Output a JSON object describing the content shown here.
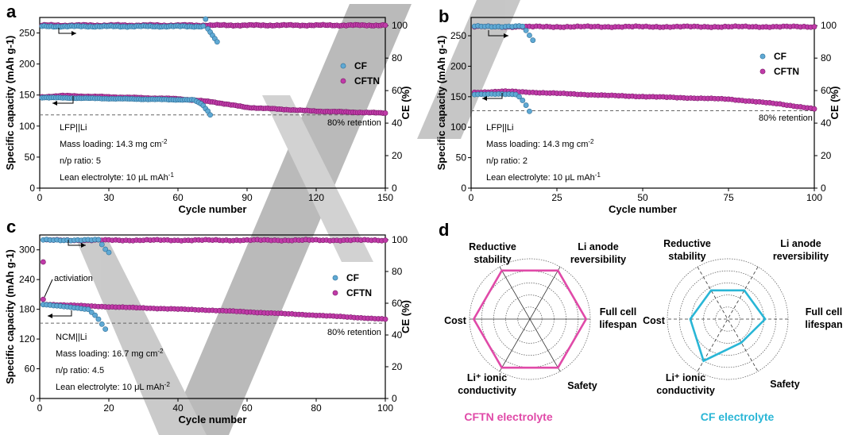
{
  "colors": {
    "cf_fill": "#5fa9d4",
    "cf_stroke": "#2f6f97",
    "cftn_fill": "#c03aa8",
    "cftn_stroke": "#7b1f6b",
    "radar_cftn": "#e04aa8",
    "radar_cf": "#29b6d6",
    "watermark": "#9a9a9a"
  },
  "chart_data": [
    {
      "panel": "a",
      "type": "scatter",
      "xlabel": "Cycle number",
      "ylabel": "Specific capacity (mAh g-1)",
      "y2label": "CE (%)",
      "xlim": [
        0,
        150
      ],
      "ylim": [
        0,
        275
      ],
      "y2lim": [
        0,
        105
      ],
      "xticks": [
        "0",
        "30",
        "60",
        "90",
        "120",
        "150"
      ],
      "yticks": [
        "0",
        "50",
        "100",
        "150",
        "200",
        "250"
      ],
      "y2ticks": [
        "0",
        "20",
        "40",
        "60",
        "80",
        "100"
      ],
      "legend": [
        "CF",
        "CFTN"
      ],
      "retention_label": "80% retention",
      "retention_value": 118,
      "notes": [
        "LFP||Li",
        "Mass loading: 14.3 mg cm",
        "n/p ratio: 5",
        "Lean electrolyte: 10 μL mAh"
      ],
      "note_sups": [
        "",
        "-2",
        "",
        "-1"
      ],
      "cf_cap": {
        "n": 67,
        "start": 146,
        "end": 142,
        "tail": [
          140,
          138,
          136,
          133,
          128,
          124,
          118
        ]
      },
      "cf_ce": {
        "n": 71,
        "base": 99.5,
        "tail": [
          104,
          98,
          96,
          94,
          92,
          90
        ]
      },
      "cftn_cap": {
        "n": 150,
        "points": [
          [
            1,
            147
          ],
          [
            10,
            149
          ],
          [
            30,
            147
          ],
          [
            60,
            144
          ],
          [
            75,
            139
          ],
          [
            90,
            130
          ],
          [
            120,
            124
          ],
          [
            150,
            121
          ]
        ]
      },
      "cftn_ce": {
        "n": 150,
        "base": 100.2
      }
    },
    {
      "panel": "b",
      "type": "scatter",
      "xlabel": "Cycle number",
      "ylabel": "Specific capacity (mAh g-1)",
      "y2label": "CE (%)",
      "xlim": [
        0,
        100
      ],
      "ylim": [
        0,
        280
      ],
      "y2lim": [
        0,
        105
      ],
      "xticks": [
        "0",
        "25",
        "50",
        "75",
        "100"
      ],
      "yticks": [
        "0",
        "50",
        "100",
        "150",
        "200",
        "250"
      ],
      "y2ticks": [
        "0",
        "20",
        "40",
        "60",
        "80",
        "100"
      ],
      "legend": [
        "CF",
        "CFTN"
      ],
      "retention_label": "80% retention",
      "retention_value": 127,
      "notes": [
        "LFP||Li",
        "Mass loading: 14.3 mg cm",
        "n/p ratio: 2",
        "Lean electrolyte: 10 μL mAh"
      ],
      "note_sups": [
        "",
        "-2",
        "",
        "-1"
      ],
      "cf_cap": {
        "n": 13,
        "start": 154,
        "end": 154,
        "tail": [
          150,
          144,
          136,
          126
        ]
      },
      "cf_ce": {
        "n": 15,
        "base": 99.5,
        "tail": [
          97,
          94,
          91
        ]
      },
      "cftn_cap": {
        "n": 100,
        "points": [
          [
            1,
            157
          ],
          [
            10,
            159
          ],
          [
            40,
            152
          ],
          [
            75,
            146
          ],
          [
            90,
            138
          ],
          [
            100,
            130
          ]
        ]
      },
      "cftn_ce": {
        "n": 100,
        "base": 99.3
      }
    },
    {
      "panel": "c",
      "type": "scatter",
      "xlabel": "Cycle number",
      "ylabel": "Specific capacity (mAh g-1)",
      "y2label": "CE (%)",
      "xlim": [
        0,
        100
      ],
      "ylim": [
        0,
        330
      ],
      "y2lim": [
        0,
        103
      ],
      "xticks": [
        "0",
        "20",
        "40",
        "60",
        "80",
        "100"
      ],
      "yticks": [
        "0",
        "60",
        "120",
        "180",
        "240",
        "300"
      ],
      "y2ticks": [
        "0",
        "20",
        "40",
        "60",
        "80",
        "100"
      ],
      "legend": [
        "CF",
        "CFTN"
      ],
      "retention_label": "80% retention",
      "retention_value": 152,
      "annotation": "activiation",
      "notes": [
        "NCM||Li",
        "Mass loading: 16.7 mg cm",
        "n/p ratio: 4.5",
        "Lean electrolyte: 10 μL mAh"
      ],
      "note_sups": [
        "",
        "-2",
        "",
        "-2"
      ],
      "cf_cap": {
        "n": 14,
        "start": 190,
        "end": 180,
        "tail": [
          174,
          168,
          160,
          150,
          140
        ]
      },
      "cf_ce": {
        "n": 17,
        "base": 99.8,
        "tail": [
          97,
          94,
          92
        ]
      },
      "cftn_cap": {
        "n": 100,
        "first": 200,
        "points": [
          [
            2,
            190
          ],
          [
            20,
            185
          ],
          [
            50,
            178
          ],
          [
            80,
            168
          ],
          [
            100,
            160
          ]
        ]
      },
      "cftn_ce": {
        "n": 100,
        "base": 99.7,
        "first": 86
      }
    },
    {
      "panel": "d",
      "type": "radar",
      "axes": [
        "Reductive stability",
        "Li anode reversibility",
        "Full cell lifespan",
        "Safety",
        "Li⁺ ionic conductivity",
        "Cost"
      ],
      "series": [
        {
          "name": "CFTN electrolyte",
          "values": [
            0.93,
            0.93,
            0.93,
            0.93,
            0.93,
            0.93
          ]
        },
        {
          "name": "CF electrolyte",
          "values": [
            0.55,
            0.55,
            0.62,
            0.45,
            0.8,
            0.62
          ]
        }
      ],
      "rings": 5
    }
  ],
  "panel_letters": [
    "a",
    "b",
    "c",
    "d"
  ]
}
